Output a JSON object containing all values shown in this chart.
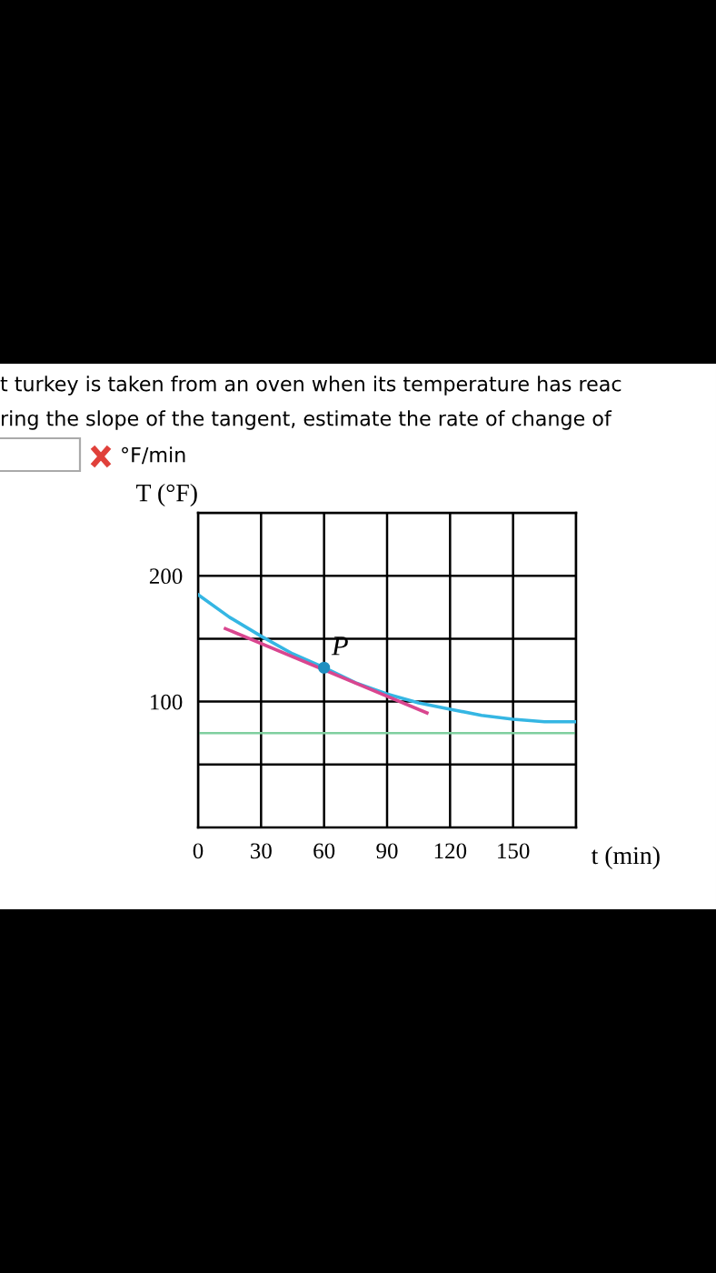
{
  "chart_data": {
    "type": "line",
    "xlabel": "t (min)",
    "ylabel": "T (°F)",
    "x": [
      0,
      15,
      30,
      45,
      60,
      75,
      90,
      105,
      120,
      135,
      150,
      165,
      180
    ],
    "series": [
      {
        "color": "#35b6e3",
        "values": [
          185,
          167,
          152,
          138,
          127,
          115,
          106,
          99,
          94,
          89,
          86,
          84,
          84
        ]
      },
      {
        "type": "line",
        "color": "#d9468f",
        "x": [
          13,
          109
        ],
        "values": [
          158,
          91
        ]
      },
      {
        "type": "scatter",
        "color": "#1f8fc0",
        "x": [
          60
        ],
        "values": [
          127
        ],
        "marker": "circle"
      }
    ],
    "xlim": [
      0,
      180
    ],
    "ylim": [
      0,
      250
    ],
    "xticks": [
      0,
      30,
      60,
      90,
      120,
      150,
      {
        "value": 180,
        "label": null
      }
    ],
    "yticks": [
      {
        "value": 50,
        "label": null
      },
      100,
      {
        "value": 150,
        "label": null
      },
      200,
      {
        "value": 250,
        "label": null
      }
    ],
    "grid": true,
    "ref_lines": [
      {
        "axis": "y",
        "value": 75,
        "color": "#7fcf9f"
      }
    ],
    "annotations": [
      {
        "text": "P",
        "x": 60,
        "y": 127
      },
      "t turkey is taken from an oven when its temperature has reac",
      "ring the slope of the tangent, estimate the rate of change of",
      "°F/min"
    ]
  }
}
